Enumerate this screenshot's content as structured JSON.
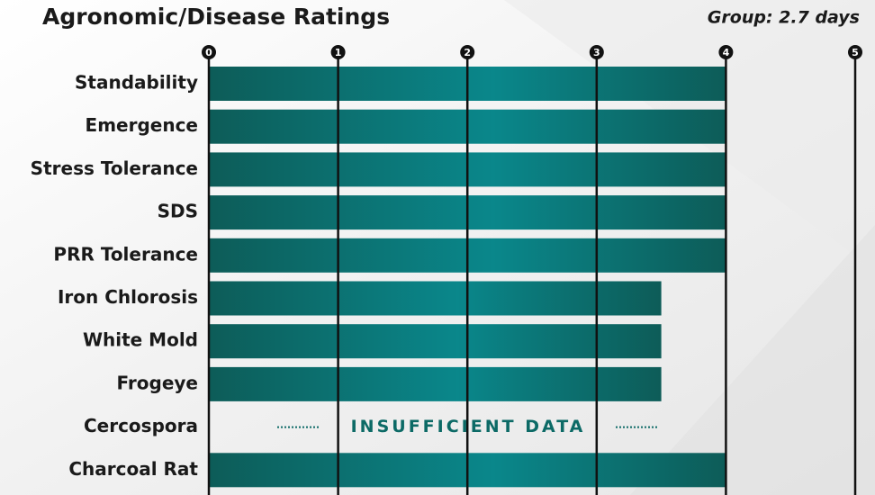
{
  "chart_data": {
    "type": "bar",
    "orientation": "horizontal",
    "title": "Agronomic/Disease Ratings",
    "subtitle": "Group: 2.7 days",
    "categories": [
      "Standability",
      "Emergence",
      "Stress Tolerance",
      "SDS",
      "PRR Tolerance",
      "Iron Chlorosis",
      "White Mold",
      "Frogeye",
      "Cercospora",
      "Charcoal Rat"
    ],
    "values": [
      4,
      4,
      4,
      4,
      4,
      3.5,
      3.5,
      3.5,
      null,
      4
    ],
    "annotation": "INSUFFICIENT DATA",
    "color": "#0c6a66",
    "xlim": [
      0,
      5
    ],
    "xticks": [
      0,
      1,
      2,
      3,
      4,
      5
    ],
    "grid": true
  }
}
